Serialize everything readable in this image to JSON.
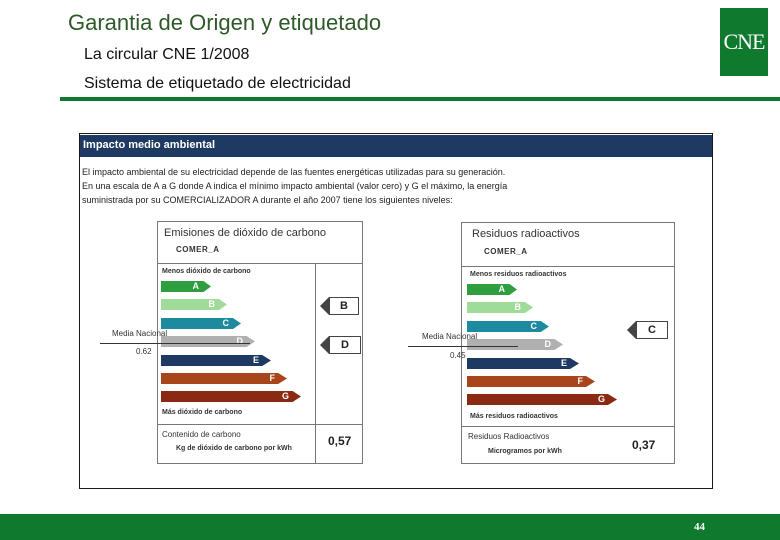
{
  "header": {
    "title": "Garantia de Origen y etiquetado",
    "subtitle1": "La circular CNE 1/2008",
    "subtitle2": "Sistema de etiquetado de electricidad",
    "logo_text": "CNE"
  },
  "panel": {
    "heading": "Impacto medio ambiental",
    "intro": [
      "El impacto ambiental de su electricidad depende de las fuentes energéticas utilizadas para su generación.",
      "En una escala de A a G donde A indica el mínimo impacto ambiental (valor cero) y G el máximo, la energía",
      "suministrada por su COMERCIALIZADOR A durante el año 2007 tiene los siguientes niveles:"
    ]
  },
  "co2": {
    "title": "Emisiones de dióxido de carbono",
    "company": "COMER_A",
    "top_label": "Menos dióxido de carbono",
    "bottom_label": "Más dióxido de carbono",
    "grades": [
      "A",
      "B",
      "C",
      "D",
      "E",
      "F",
      "G"
    ],
    "company_grade": "B",
    "national_grade": "D",
    "media_label": "Media Nacional",
    "media_value": "0.62",
    "content_label": "Contenido de carbono",
    "unit_label": "Kg de dióxido de carbono por kWh",
    "value": "0,57"
  },
  "rad": {
    "title": "Residuos radioactivos",
    "company": "COMER_A",
    "top_label": "Menos residuos radioactivos",
    "bottom_label": "Más residuos radioactivos",
    "grades": [
      "A",
      "B",
      "C",
      "D",
      "E",
      "F",
      "G"
    ],
    "company_grade": "C",
    "media_label": "Media Nacional",
    "media_value": "0.45",
    "content_label": "Residuos Radioactivos",
    "unit_label": "Microgramos por kWh",
    "value": "0,37"
  },
  "colors": {
    "A": "#2e9e3e",
    "B": "#9fdc9a",
    "C": "#1d8aa0",
    "D": "#b0b0b0",
    "E": "#1e3a63",
    "F": "#a8451b",
    "G": "#8a2a12",
    "brand_green": "#0f7a2e",
    "panel_header": "#1e3a63"
  },
  "footer": {
    "page_number": "44"
  }
}
